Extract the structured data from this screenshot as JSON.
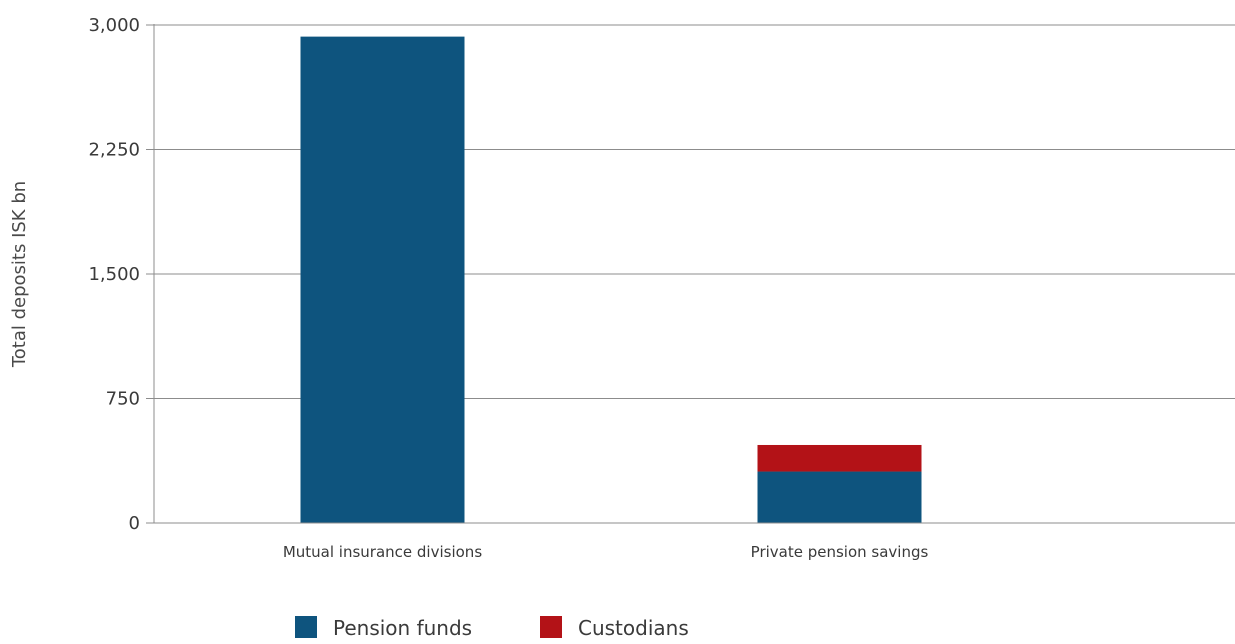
{
  "chart_data": {
    "type": "bar",
    "stacked": true,
    "categories": [
      "Mutual insurance divisions",
      "Private pension savings"
    ],
    "series": [
      {
        "name": "Pension funds",
        "values": [
          2930,
          310
        ],
        "color": "#0e547e"
      },
      {
        "name": "Custodians",
        "values": [
          0,
          160
        ],
        "color": "#b31217"
      }
    ],
    "xlabel": "",
    "ylabel": "Total deposits ISK bn",
    "ylim": [
      0,
      3000
    ],
    "yticks": [
      0,
      750,
      1500,
      2250,
      3000
    ],
    "ytick_labels": [
      "0",
      "750",
      "1,500",
      "2,250",
      "3,000"
    ],
    "grid": true,
    "legend_position": "bottom"
  }
}
